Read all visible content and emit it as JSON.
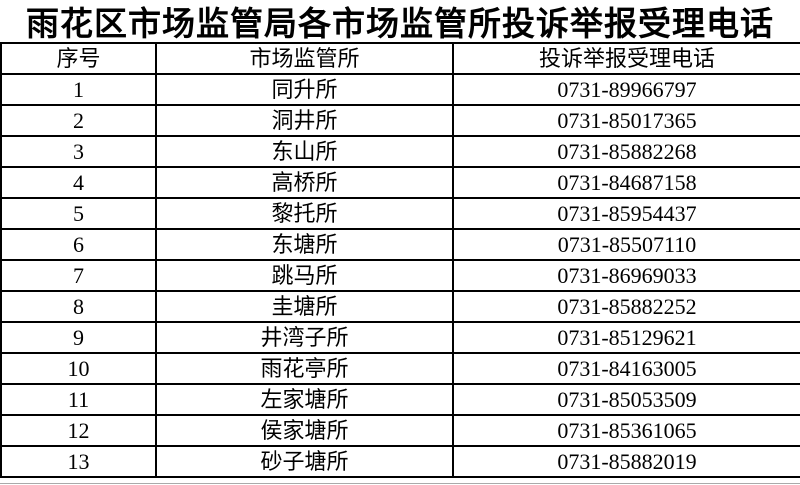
{
  "title": "雨花区市场监管局各市场监管所投诉举报受理电话",
  "table": {
    "columns": [
      "序号",
      "市场监管所",
      "投诉举报受理电话"
    ],
    "rows": [
      {
        "no": "1",
        "office": "同升所",
        "phone": "0731-89966797"
      },
      {
        "no": "2",
        "office": "洞井所",
        "phone": "0731-85017365"
      },
      {
        "no": "3",
        "office": "东山所",
        "phone": "0731-85882268"
      },
      {
        "no": "4",
        "office": "高桥所",
        "phone": "0731-84687158"
      },
      {
        "no": "5",
        "office": "黎托所",
        "phone": "0731-85954437"
      },
      {
        "no": "6",
        "office": "东塘所",
        "phone": "0731-85507110"
      },
      {
        "no": "7",
        "office": "跳马所",
        "phone": "0731-86969033"
      },
      {
        "no": "8",
        "office": "圭塘所",
        "phone": "0731-85882252"
      },
      {
        "no": "9",
        "office": "井湾子所",
        "phone": "0731-85129621"
      },
      {
        "no": "10",
        "office": "雨花亭所",
        "phone": "0731-84163005"
      },
      {
        "no": "11",
        "office": "左家塘所",
        "phone": "0731-85053509"
      },
      {
        "no": "12",
        "office": "侯家塘所",
        "phone": "0731-85361065"
      },
      {
        "no": "13",
        "office": "砂子塘所",
        "phone": "0731-85882019"
      }
    ]
  },
  "colors": {
    "text": "#000000",
    "border": "#000000",
    "background": "#ffffff"
  }
}
